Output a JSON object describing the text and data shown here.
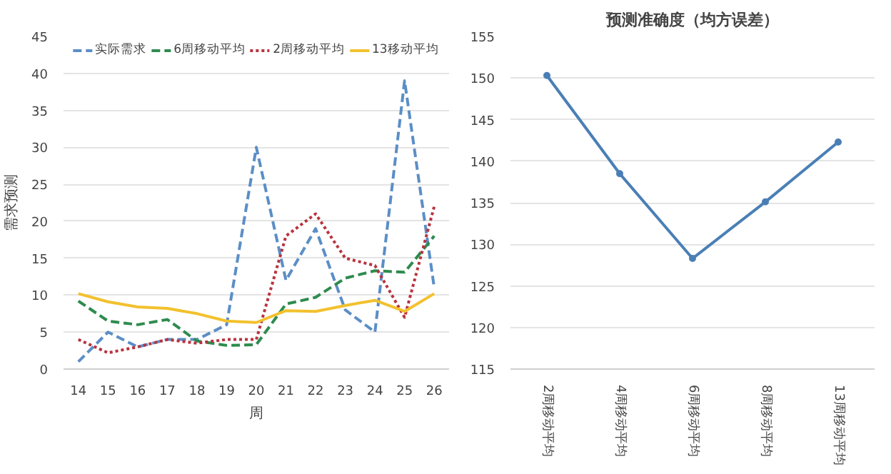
{
  "chart_data": [
    {
      "type": "line",
      "xlabel": "周",
      "ylabel": "需求预测",
      "categories": [
        "14",
        "15",
        "16",
        "17",
        "18",
        "19",
        "20",
        "21",
        "22",
        "23",
        "24",
        "25",
        "26"
      ],
      "ylim": [
        0,
        45
      ],
      "yticks": [
        0,
        5,
        10,
        15,
        20,
        25,
        30,
        35,
        40,
        45
      ],
      "grid": "y",
      "legend": "top",
      "series": [
        {
          "name": "实际需求",
          "color": "#5b8ec6",
          "line_style": "dashed",
          "values": [
            1,
            5,
            3,
            4,
            4,
            6,
            30,
            12,
            19,
            8,
            5,
            39,
            11
          ]
        },
        {
          "name": "6周移动平均",
          "color": "#2e8b4e",
          "line_style": "dashed",
          "values": [
            9.2,
            6.5,
            6,
            6.7,
            3.8,
            3.2,
            3.3,
            8.8,
            9.7,
            12.3,
            13.3,
            13.1,
            18
          ]
        },
        {
          "name": "2周移动平均",
          "color": "#b8323f",
          "line_style": "dotted",
          "values": [
            4,
            2.2,
            3,
            4,
            3.5,
            4,
            4,
            18,
            21,
            15,
            14,
            7,
            22
          ]
        },
        {
          "name": "13移动平均",
          "color": "#f2c12e",
          "line_style": "solid",
          "values": [
            10.2,
            9.1,
            8.4,
            8.2,
            7.5,
            6.5,
            6.3,
            7.9,
            7.8,
            8.6,
            9.3,
            7.8,
            10.2
          ]
        }
      ]
    },
    {
      "type": "line",
      "title": "预测准确度（均方误差）",
      "categories": [
        "2周移动平均",
        "4周移动平均",
        "6周移动平均",
        "8周移动平均",
        "13周移动平均"
      ],
      "ylim": [
        115,
        155
      ],
      "yticks": [
        115,
        120,
        125,
        130,
        135,
        140,
        145,
        150,
        155
      ],
      "grid": "y",
      "marker": "circle",
      "series": [
        {
          "color": "#4a7fb5",
          "values": [
            150.3,
            138.5,
            128.3,
            135.1,
            142.3
          ]
        }
      ]
    }
  ]
}
